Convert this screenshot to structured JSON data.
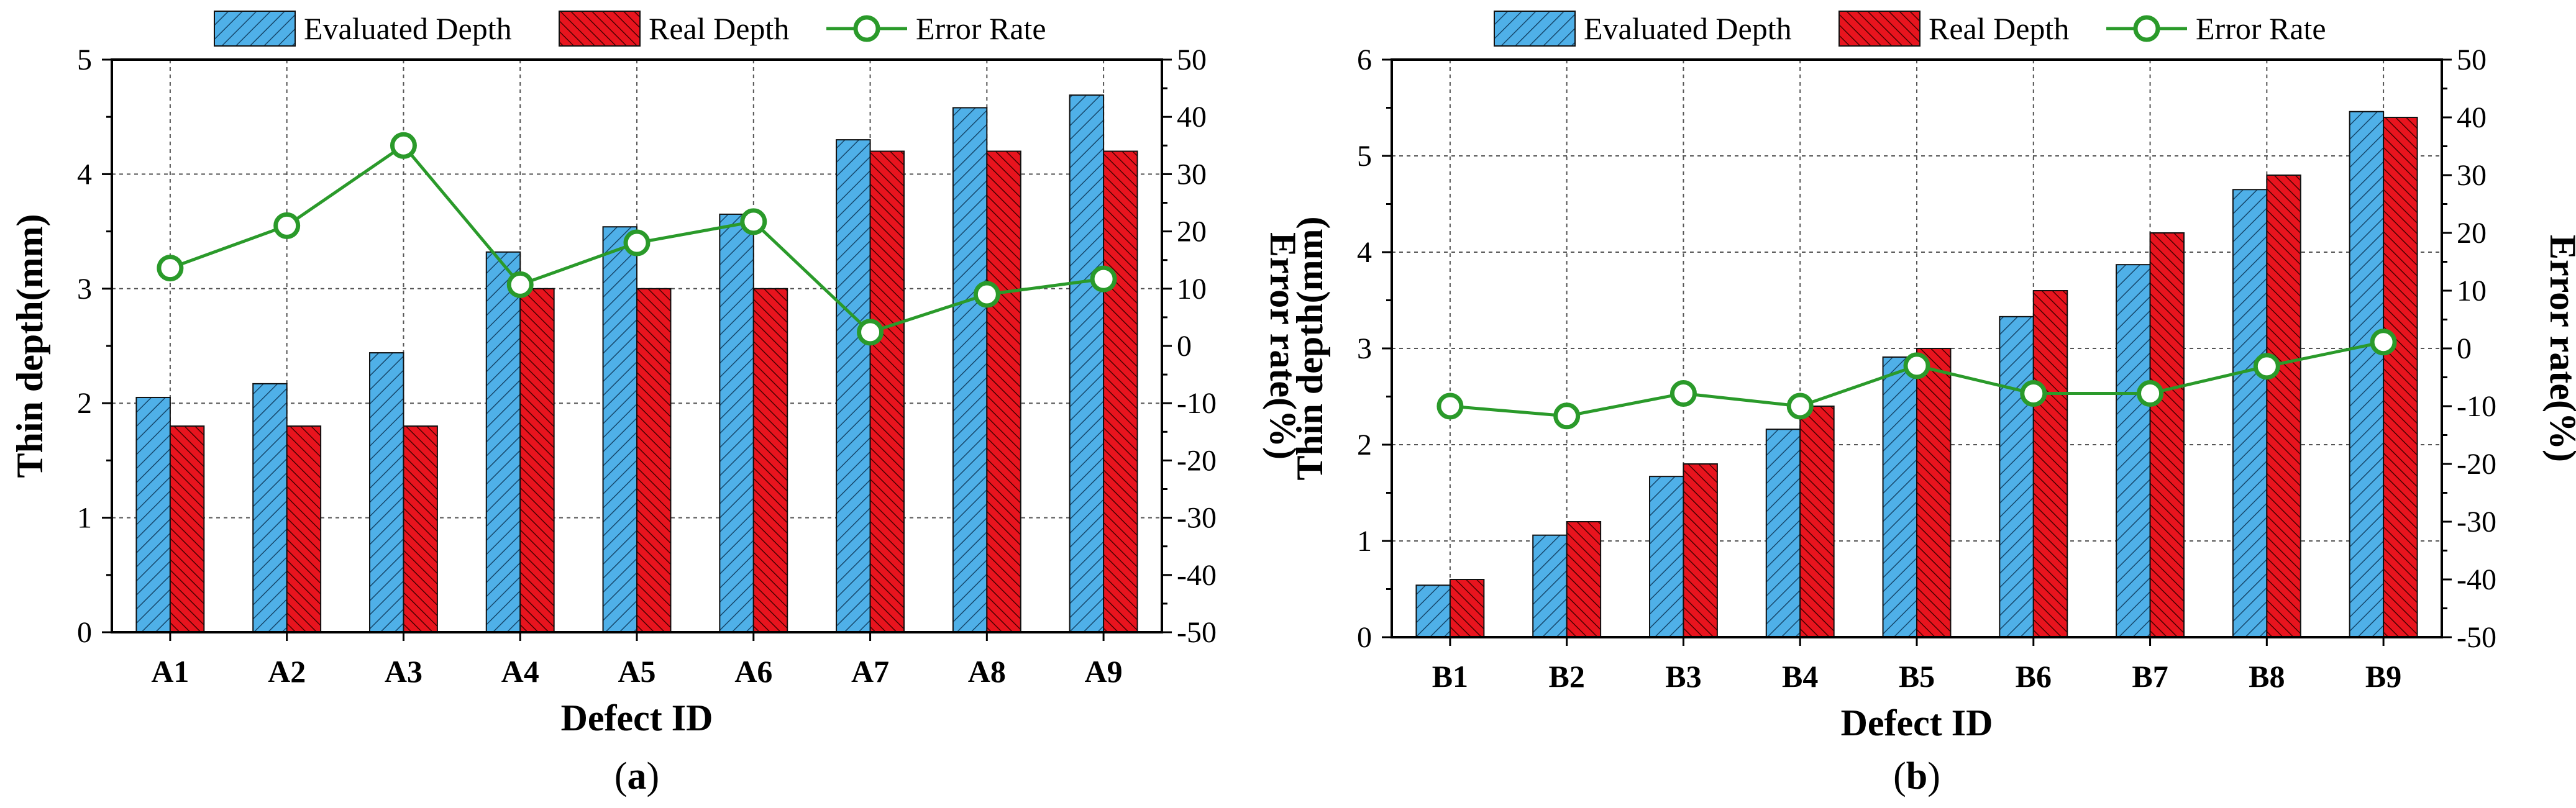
{
  "chart_data": [
    {
      "type": "bar",
      "panel_label": "a",
      "xlabel": "Defect ID",
      "ylabel": "Thin depth(mm)",
      "y2label": "Error rate(%)",
      "categories": [
        "A1",
        "A2",
        "A3",
        "A4",
        "A5",
        "A6",
        "A7",
        "A8",
        "A9"
      ],
      "ylim": [
        0,
        5
      ],
      "yticks": [
        0,
        1,
        2,
        3,
        4,
        5
      ],
      "y2lim": [
        -50,
        50
      ],
      "y2ticks": [
        -50,
        -40,
        -30,
        -20,
        -10,
        0,
        10,
        20,
        30,
        40,
        50
      ],
      "grid": true,
      "legend": [
        "Evaluated Depth",
        "Real Depth",
        "Error Rate"
      ],
      "legend_position": "top",
      "series": [
        {
          "name": "Evaluated Depth",
          "type": "bar",
          "axis": "left",
          "color": "#4fb0e8",
          "values": [
            2.05,
            2.17,
            2.44,
            3.32,
            3.54,
            3.65,
            4.3,
            4.58,
            4.69
          ]
        },
        {
          "name": "Real Depth",
          "type": "bar",
          "axis": "left",
          "color": "#e8141e",
          "values": [
            1.8,
            1.8,
            1.8,
            3.0,
            3.0,
            3.0,
            4.2,
            4.2,
            4.2
          ]
        },
        {
          "name": "Error Rate",
          "type": "line",
          "axis": "right",
          "color": "#2a9a2a",
          "values": [
            13.6,
            21.0,
            35.0,
            10.7,
            18.0,
            21.7,
            2.4,
            9.0,
            11.7
          ]
        }
      ]
    },
    {
      "type": "bar",
      "panel_label": "b",
      "xlabel": "Defect ID",
      "ylabel": "Thin depth(mm)",
      "y2label": "Error rate(%)",
      "categories": [
        "B1",
        "B2",
        "B3",
        "B4",
        "B5",
        "B6",
        "B7",
        "B8",
        "B9"
      ],
      "ylim": [
        0,
        6
      ],
      "yticks": [
        0,
        1,
        2,
        3,
        4,
        5,
        6
      ],
      "y2lim": [
        -50,
        50
      ],
      "y2ticks": [
        -50,
        -40,
        -30,
        -20,
        -10,
        0,
        10,
        20,
        30,
        40,
        50
      ],
      "grid": true,
      "legend": [
        "Evaluated Depth",
        "Real Depth",
        "Error Rate"
      ],
      "legend_position": "top",
      "series": [
        {
          "name": "Evaluated Depth",
          "type": "bar",
          "axis": "left",
          "color": "#4fb0e8",
          "values": [
            0.54,
            1.06,
            1.67,
            2.16,
            2.91,
            3.33,
            3.87,
            4.65,
            5.46
          ]
        },
        {
          "name": "Real Depth",
          "type": "bar",
          "axis": "left",
          "color": "#e8141e",
          "values": [
            0.6,
            1.2,
            1.8,
            2.4,
            3.0,
            3.6,
            4.2,
            4.8,
            5.4
          ]
        },
        {
          "name": "Error Rate",
          "type": "line",
          "axis": "right",
          "color": "#2a9a2a",
          "values": [
            -10.0,
            -11.7,
            -7.8,
            -10.0,
            -3.0,
            -7.8,
            -7.8,
            -3.1,
            1.1
          ]
        }
      ]
    }
  ]
}
